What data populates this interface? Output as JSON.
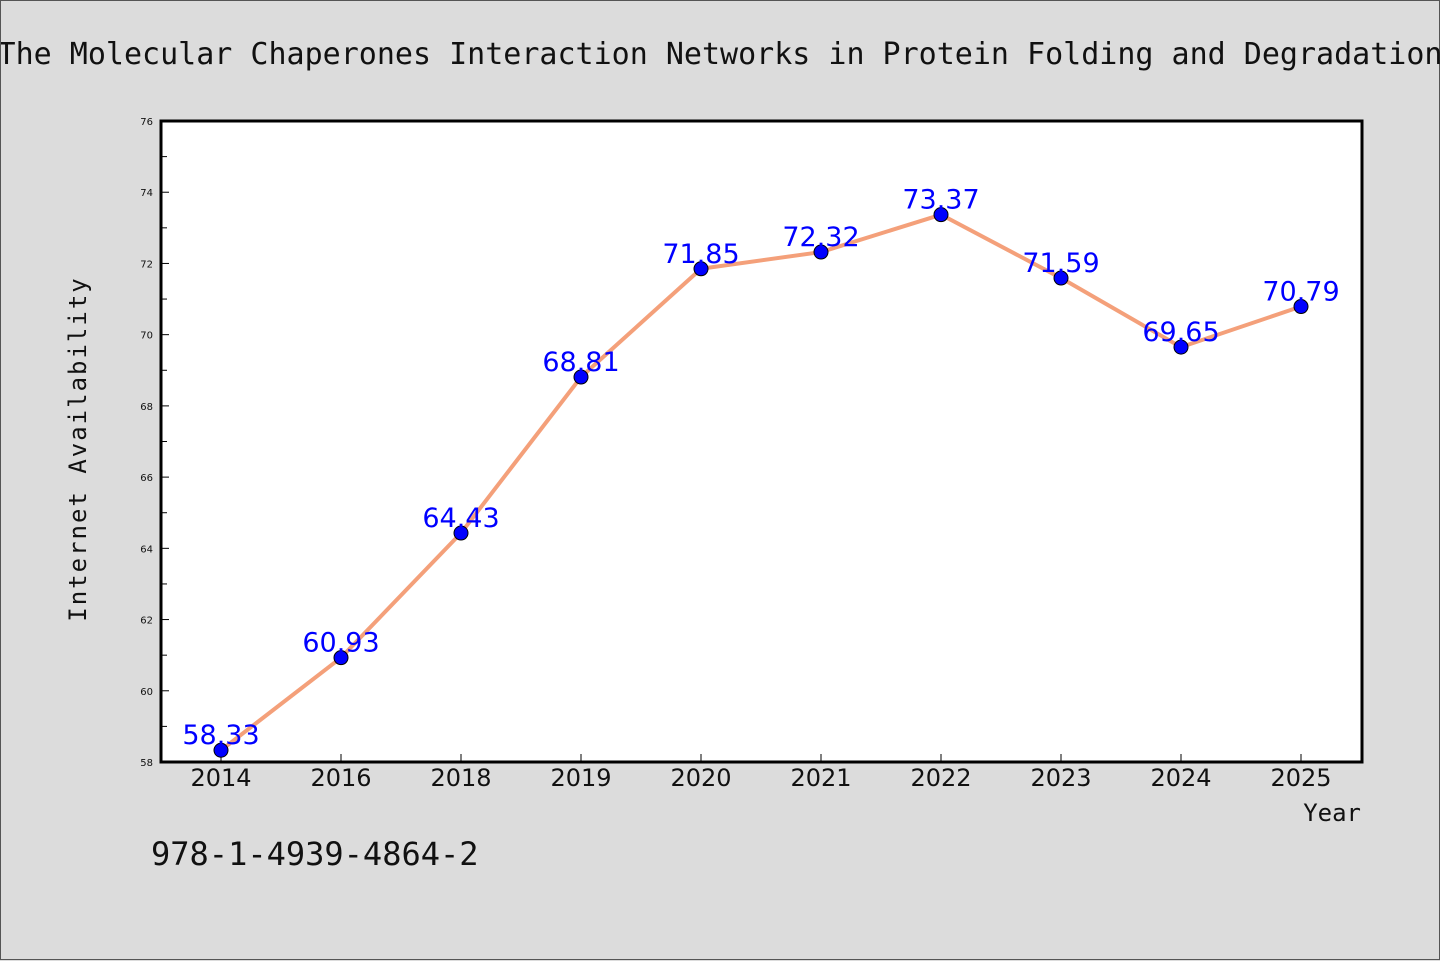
{
  "chart_data": {
    "type": "line",
    "title": "The Molecular Chaperones Interaction Networks in Protein Folding and Degradation",
    "xlabel": "Year",
    "ylabel": "Internet Availability",
    "categories": [
      "2014",
      "2016",
      "2018",
      "2019",
      "2020",
      "2021",
      "2022",
      "2023",
      "2024",
      "2025"
    ],
    "series": [
      {
        "values": [
          58.33,
          60.93,
          64.43,
          68.81,
          71.85,
          72.32,
          73.37,
          71.59,
          69.65,
          70.79
        ],
        "labels": [
          "58.33",
          "60.93",
          "64.43",
          "68.81",
          "71.85",
          "72.32",
          "73.37",
          "71.59",
          "69.65",
          "70.79"
        ],
        "line_color": "#f4a07a",
        "marker_color": "#0000ff"
      }
    ],
    "ylim": [
      58,
      76
    ],
    "yticks": [
      "58",
      "60",
      "62",
      "64",
      "66",
      "68",
      "70",
      "72",
      "74",
      "76"
    ],
    "grid": false,
    "legend": "none"
  },
  "footer": {
    "isbn": "978-1-4939-4864-2"
  }
}
